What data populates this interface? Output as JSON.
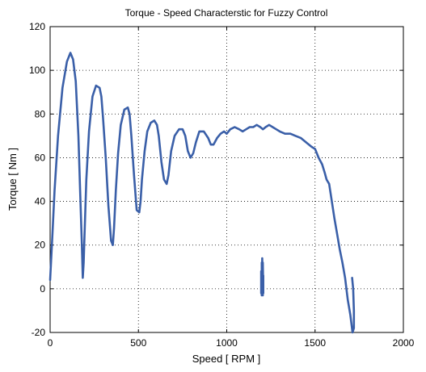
{
  "chart_data": {
    "type": "line",
    "title": "Torque - Speed Characterstic for Fuzzy Control",
    "xlabel": "Speed [ RPM ]",
    "ylabel": "Torque [ Nm ]",
    "xlim": [
      0,
      2000
    ],
    "ylim": [
      -20,
      120
    ],
    "xticks": [
      0,
      500,
      1000,
      1500,
      2000
    ],
    "yticks": [
      -20,
      0,
      20,
      40,
      60,
      80,
      100,
      120
    ],
    "grid": true,
    "line_color": "#3a5fa8",
    "series": [
      {
        "x": [
          0,
          10,
          25,
          45,
          70,
          95,
          115,
          130,
          145,
          160,
          170,
          180,
          185,
          190,
          195,
          205,
          220,
          240,
          260,
          280,
          290,
          300,
          315,
          330,
          345,
          355,
          362,
          372,
          385,
          400,
          420,
          440,
          450,
          460,
          475,
          490,
          505,
          512,
          520,
          535,
          550,
          570,
          590,
          605,
          615,
          630,
          645,
          660,
          670,
          685,
          705,
          730,
          750,
          765,
          780,
          795,
          810,
          825,
          845,
          870,
          895,
          910,
          925,
          945,
          965,
          985,
          1000,
          1020,
          1045,
          1070,
          1090,
          1110,
          1130,
          1150,
          1170,
          1190,
          1205,
          1220,
          1240,
          1260,
          1280,
          1300,
          1330,
          1360,
          1390,
          1420,
          1450,
          1480,
          1500,
          1520,
          1540,
          1555,
          1565,
          1580,
          1595,
          1610,
          1625,
          1640,
          1655,
          1670,
          1685,
          1700,
          1712,
          1720,
          1720,
          1716,
          1710
        ],
        "y": [
          4,
          20,
          45,
          70,
          92,
          104,
          108,
          105,
          95,
          70,
          45,
          20,
          5,
          12,
          25,
          50,
          72,
          88,
          93,
          92,
          88,
          78,
          60,
          38,
          22,
          20,
          28,
          45,
          62,
          75,
          82,
          83,
          80,
          70,
          52,
          36,
          35,
          40,
          50,
          63,
          72,
          76,
          77,
          75,
          70,
          58,
          50,
          48,
          52,
          63,
          70,
          73,
          73,
          70,
          63,
          60,
          62,
          67,
          72,
          72,
          69,
          66,
          66,
          69,
          71,
          72,
          71,
          73,
          74,
          73,
          72,
          73,
          74,
          74,
          75,
          74,
          73,
          74,
          75,
          74,
          73,
          72,
          71,
          71,
          70,
          69,
          67,
          65,
          64,
          60,
          57,
          53,
          50,
          48,
          40,
          32,
          25,
          18,
          12,
          5,
          -5,
          -12,
          -20,
          -18,
          -10,
          0,
          5
        ]
      },
      {
        "x": [
          1195,
          1195,
          1198,
          1198,
          1201,
          1201,
          1204,
          1204,
          1207,
          1207
        ],
        "y": [
          -2,
          8,
          -3,
          12,
          -2,
          14,
          -3,
          12,
          -2,
          6
        ]
      }
    ]
  }
}
